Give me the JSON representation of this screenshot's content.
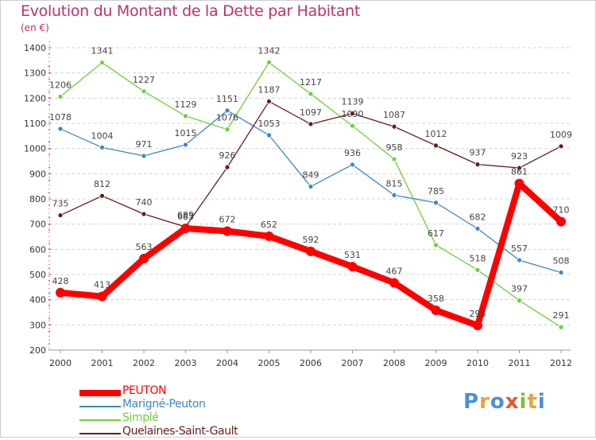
{
  "title": "Evolution du Montant de la Dette par Habitant",
  "subtitle": "(en €)",
  "logo": {
    "letters": [
      "P",
      "r",
      "o",
      "x",
      "i",
      "t",
      "i"
    ],
    "colors": [
      "#4a90d9",
      "#e8a33b",
      "#4a90d9",
      "#e8542d",
      "#7cbf3a",
      "#e8a33b",
      "#4a90d9"
    ]
  },
  "chart_data": {
    "type": "line",
    "x": [
      "2000",
      "2001",
      "2002",
      "2003",
      "2004",
      "2005",
      "2006",
      "2007",
      "2008",
      "2009",
      "2010",
      "2011",
      "2012"
    ],
    "ylim": [
      200,
      1400
    ],
    "yticks": [
      200,
      300,
      400,
      500,
      600,
      700,
      800,
      900,
      1000,
      1100,
      1200,
      1300,
      1400
    ],
    "grid": "horizontal dashed",
    "legend_placement": "bottom-left",
    "series": [
      {
        "name": "PEUTON",
        "color": "#ff0000",
        "values": [
          428,
          413,
          563,
          683,
          672,
          652,
          592,
          531,
          467,
          358,
          298,
          861,
          710
        ],
        "labels": [
          "428",
          "413",
          "563",
          "683",
          "672",
          "652",
          "592",
          "531",
          "467",
          "358",
          "298",
          "861",
          "710"
        ]
      },
      {
        "name": "Marigné-Peuton",
        "color": "#3a87c8",
        "values": [
          1078,
          1004,
          971,
          1015,
          1151,
          1053,
          849,
          936,
          815,
          785,
          682,
          557,
          508
        ],
        "labels": [
          "1078",
          "1004",
          "971",
          "1015",
          "1151",
          "1053",
          "849",
          "936",
          "815",
          "785",
          "682",
          "557",
          "508"
        ]
      },
      {
        "name": "Simplé",
        "color": "#6ccf3a",
        "values": [
          1206,
          1341,
          1227,
          1129,
          1076,
          1342,
          1217,
          1090,
          958,
          617,
          518,
          397,
          291
        ],
        "labels": [
          "1206",
          "1341",
          "1227",
          "1129",
          "1076",
          "1342",
          "1217",
          "1090",
          "958",
          "617",
          "518",
          "397",
          "291"
        ]
      },
      {
        "name": "Quelaines-Saint-Gault",
        "color": "#6b1a1a",
        "values": [
          735,
          812,
          740,
          689,
          926,
          1187,
          1097,
          1139,
          1087,
          1012,
          937,
          923,
          1009
        ],
        "labels": [
          "735",
          "812",
          "740",
          "689",
          "926",
          "1187",
          "1097",
          "1139",
          "1087",
          "1012",
          "937",
          "923",
          "1009"
        ]
      }
    ]
  }
}
